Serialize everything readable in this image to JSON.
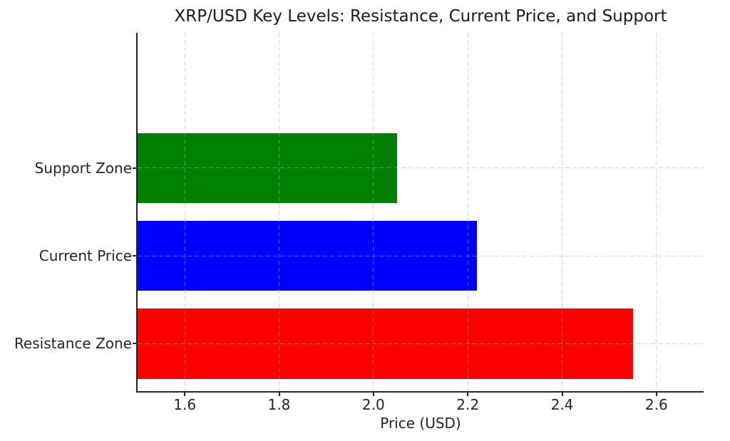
{
  "chart_data": {
    "type": "bar",
    "orientation": "horizontal",
    "title": "XRP/USD Key Levels: Resistance, Current Price, and Support",
    "xlabel": "Price (USD)",
    "ylabel": "",
    "categories": [
      "Support Zone",
      "Current Price",
      "Resistance Zone"
    ],
    "values": [
      2.05,
      2.22,
      2.55
    ],
    "colors": [
      "#008000",
      "#0000ff",
      "#ff0000"
    ],
    "bar_base": 1.5,
    "xlim": [
      1.5,
      2.7
    ],
    "xticks": [
      1.6,
      1.8,
      2.0,
      2.2,
      2.4,
      2.6
    ],
    "xtick_labels": [
      "1.6",
      "1.8",
      "2.0",
      "2.2",
      "2.4",
      "2.6"
    ],
    "grid": true,
    "grid_style": "dashed",
    "grid_color": "#b0b0b0",
    "legend": "none"
  }
}
